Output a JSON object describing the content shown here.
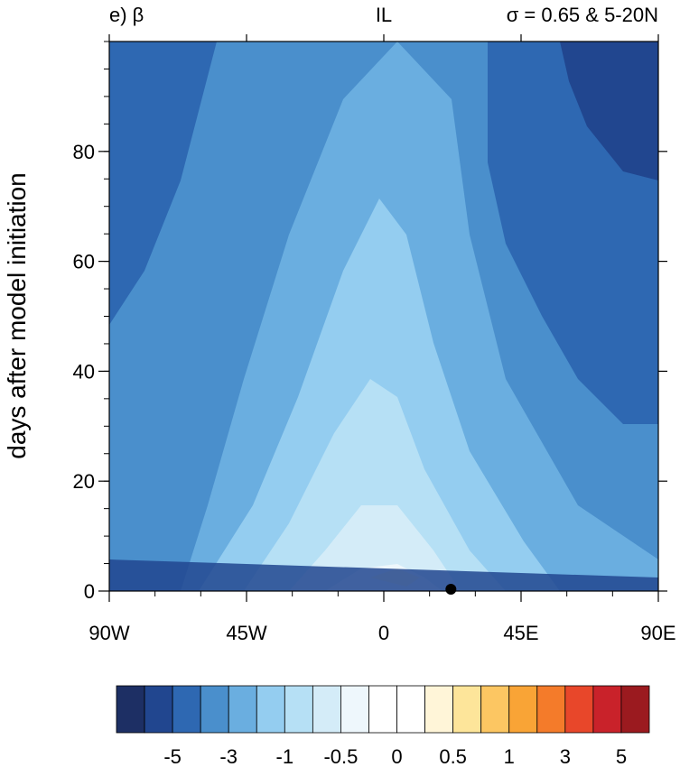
{
  "chart_data": {
    "type": "heatmap",
    "panel_label": "e) β",
    "center_title": "IL",
    "right_title": "σ  = 0.65 & 5-20N",
    "ylabel": "days after model initiation",
    "xlabel": "",
    "xlim": [
      -90,
      90
    ],
    "ylim": [
      0,
      100
    ],
    "x_ticks": [
      {
        "value": -90,
        "label": "90W"
      },
      {
        "value": -45,
        "label": "45W"
      },
      {
        "value": 0,
        "label": "0"
      },
      {
        "value": 45,
        "label": "45E"
      },
      {
        "value": 90,
        "label": "90E"
      }
    ],
    "y_ticks": [
      {
        "value": 0,
        "label": "0"
      },
      {
        "value": 20,
        "label": "20"
      },
      {
        "value": 40,
        "label": "40"
      },
      {
        "value": 60,
        "label": "60"
      },
      {
        "value": 80,
        "label": "80"
      }
    ],
    "grid": false,
    "colorbar": {
      "placement": "bottom",
      "colors": [
        "#1d2f64",
        "#21468f",
        "#2e68b2",
        "#4a8fcc",
        "#6aaee0",
        "#94cdf0",
        "#b6e0f5",
        "#d4ecf8",
        "#eef7fc",
        "#ffffff",
        "#ffffff",
        "#fff5d8",
        "#fde59a",
        "#fcc662",
        "#f9a436",
        "#f47b2a",
        "#e8472a",
        "#c9222a",
        "#9b1a1f"
      ],
      "tick_labels": [
        "-5",
        "-3",
        "-1",
        "-0.5",
        "0",
        "0.5",
        "1",
        "3",
        "5"
      ]
    },
    "source_marker": {
      "x": 22,
      "y": 0
    }
  }
}
